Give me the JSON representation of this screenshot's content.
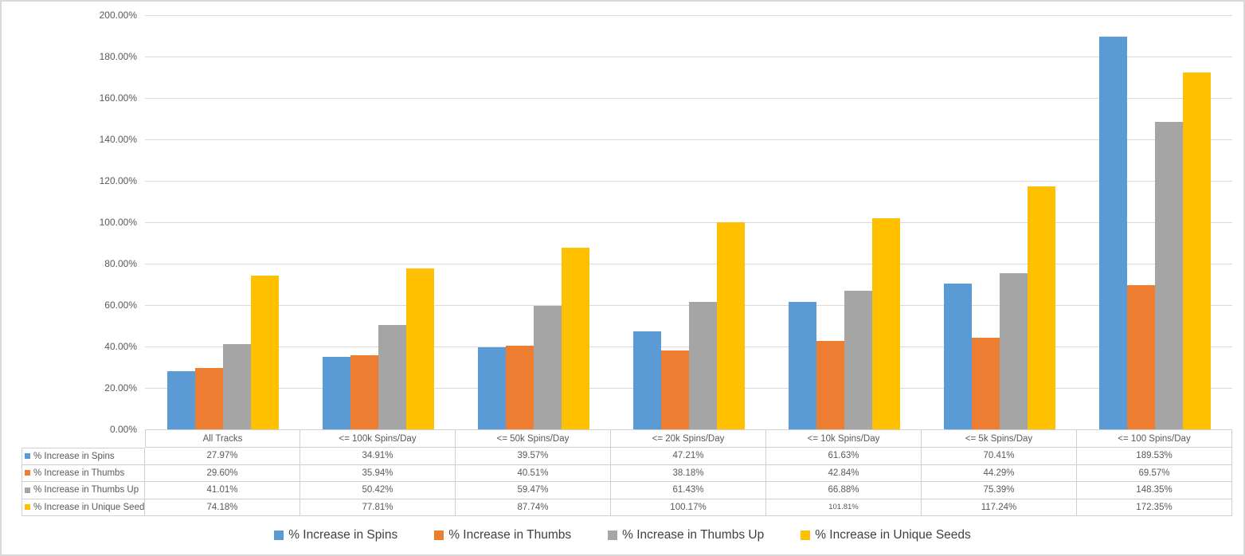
{
  "chart_data": {
    "type": "bar",
    "title": "",
    "xlabel": "",
    "ylabel": "",
    "categories": [
      "All Tracks",
      "<= 100k Spins/Day",
      "<= 50k Spins/Day",
      "<= 20k Spins/Day",
      "<= 10k Spins/Day",
      "<= 5k Spins/Day",
      "<= 100 Spins/Day"
    ],
    "series": [
      {
        "name": "% Increase in Spins",
        "color": "#5B9BD5",
        "values": [
          27.97,
          34.91,
          39.57,
          47.21,
          61.63,
          70.41,
          189.53
        ]
      },
      {
        "name": "% Increase in Thumbs",
        "color": "#ED7D31",
        "values": [
          29.6,
          35.94,
          40.51,
          38.18,
          42.84,
          44.29,
          69.57
        ]
      },
      {
        "name": "% Increase in Thumbs Up",
        "color": "#A5A5A5",
        "values": [
          41.01,
          50.42,
          59.47,
          61.43,
          66.88,
          75.39,
          148.35
        ]
      },
      {
        "name": "% Increase in Unique Seeds",
        "color": "#FFC000",
        "values": [
          74.18,
          77.81,
          87.74,
          100.17,
          101.81,
          117.24,
          172.35
        ]
      }
    ],
    "ylim": [
      0,
      200
    ],
    "y_ticks": [
      "0.00%",
      "20.00%",
      "40.00%",
      "60.00%",
      "80.00%",
      "100.00%",
      "120.00%",
      "140.00%",
      "160.00%",
      "180.00%",
      "200.00%"
    ],
    "value_format": "0.00%",
    "grid": "horizontal-only",
    "legend_position": "bottom",
    "data_table_shown": true
  },
  "table": {
    "compact_cell": {
      "row": 3,
      "col": 4
    }
  },
  "colors": {
    "background": "#FFFFFF",
    "canvas_border": "#D9D9D9",
    "gridline": "#DADADA",
    "table_border": "#D0D0D0",
    "axis_text": "#595959",
    "table_text": "#595959",
    "legend_text": "#404040"
  }
}
